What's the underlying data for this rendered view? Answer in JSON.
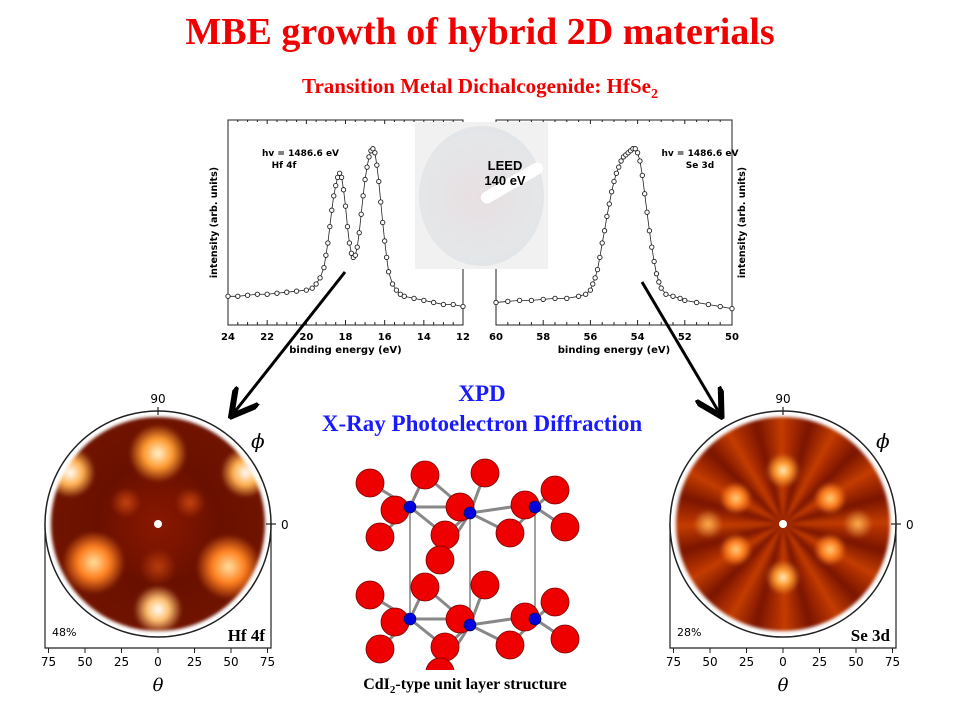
{
  "slide": {
    "title": "MBE growth of hybrid 2D materials",
    "subtitle_main": "Transition Metal Dichalcogenide: HfSe",
    "subtitle_sub": "2",
    "xpd_acronym": "XPD",
    "xpd_full": "X-Ray Photoelectron Diffraction",
    "caption_main_a": "CdI",
    "caption_sub": "2",
    "caption_main_b": "-type  unit layer structure",
    "colors": {
      "title": "#f00000",
      "xpd": "#1a1aff",
      "atom_se": "#ee0000",
      "atom_hf": "#0000dd"
    }
  },
  "leed": {
    "label_line1": "LEED",
    "label_line2": "140 eV"
  },
  "chart_data": [
    {
      "type": "scatter",
      "title": "",
      "annotation_line1": "hv = 1486.6 eV",
      "annotation_line2": "Hf 4f",
      "xlabel": "binding energy (eV)",
      "ylabel": "intensity (arb. units)",
      "xlim": [
        24,
        12
      ],
      "ylim": [
        0,
        1
      ],
      "xticks": [
        "24",
        "22",
        "20",
        "18",
        "16",
        "14",
        "12"
      ],
      "x": [
        24,
        23.5,
        23,
        22.5,
        22,
        21.5,
        21,
        20.5,
        20,
        19.7,
        19.5,
        19.3,
        19.1,
        19.0,
        18.9,
        18.8,
        18.7,
        18.6,
        18.5,
        18.4,
        18.3,
        18.2,
        18.1,
        18.0,
        17.9,
        17.8,
        17.7,
        17.6,
        17.5,
        17.4,
        17.3,
        17.2,
        17.1,
        17.0,
        16.9,
        16.8,
        16.7,
        16.6,
        16.5,
        16.4,
        16.3,
        16.2,
        16.1,
        16.0,
        15.9,
        15.8,
        15.6,
        15.4,
        15.2,
        15,
        14.5,
        14,
        13.5,
        13,
        12.5,
        12
      ],
      "y": [
        0.14,
        0.14,
        0.145,
        0.15,
        0.15,
        0.155,
        0.16,
        0.165,
        0.17,
        0.18,
        0.2,
        0.23,
        0.28,
        0.34,
        0.4,
        0.48,
        0.56,
        0.63,
        0.68,
        0.72,
        0.74,
        0.72,
        0.66,
        0.58,
        0.48,
        0.4,
        0.35,
        0.33,
        0.34,
        0.38,
        0.45,
        0.54,
        0.63,
        0.71,
        0.77,
        0.82,
        0.85,
        0.86,
        0.84,
        0.78,
        0.7,
        0.6,
        0.5,
        0.41,
        0.33,
        0.26,
        0.2,
        0.17,
        0.15,
        0.14,
        0.13,
        0.12,
        0.11,
        0.1,
        0.1,
        0.09
      ]
    },
    {
      "type": "scatter",
      "title": "",
      "annotation_line1": "hv = 1486.6 eV",
      "annotation_line2": "Se 3d",
      "xlabel": "binding energy (eV)",
      "ylabel": "intensity (arb. units)",
      "xlim": [
        60,
        50
      ],
      "ylim": [
        0,
        1
      ],
      "xticks": [
        "60",
        "58",
        "56",
        "54",
        "52",
        "50"
      ],
      "x": [
        60,
        59.5,
        59,
        58.5,
        58,
        57.5,
        57,
        56.5,
        56.2,
        56,
        55.9,
        55.8,
        55.7,
        55.6,
        55.5,
        55.4,
        55.3,
        55.2,
        55.1,
        55,
        54.9,
        54.8,
        54.7,
        54.6,
        54.5,
        54.4,
        54.3,
        54.2,
        54.1,
        54,
        53.9,
        53.8,
        53.7,
        53.6,
        53.5,
        53.4,
        53.3,
        53.2,
        53.1,
        53,
        52.8,
        52.5,
        52.2,
        52,
        51.5,
        51,
        50.5,
        50
      ],
      "y": [
        0.11,
        0.115,
        0.12,
        0.12,
        0.125,
        0.13,
        0.13,
        0.14,
        0.15,
        0.17,
        0.2,
        0.23,
        0.27,
        0.33,
        0.4,
        0.46,
        0.53,
        0.59,
        0.65,
        0.7,
        0.74,
        0.77,
        0.8,
        0.82,
        0.83,
        0.84,
        0.85,
        0.86,
        0.86,
        0.84,
        0.8,
        0.73,
        0.64,
        0.55,
        0.46,
        0.38,
        0.31,
        0.25,
        0.21,
        0.18,
        0.15,
        0.14,
        0.13,
        0.12,
        0.11,
        0.1,
        0.09,
        0.08
      ]
    }
  ],
  "polar_plots": [
    {
      "label": "Hf 4f",
      "anisotropy": "48%",
      "phi_label": "ϕ",
      "theta_label": "θ",
      "phi_ticks": [
        "90",
        "0"
      ],
      "theta_ticks": [
        "75",
        "50",
        "25",
        "0",
        "25",
        "50",
        "75"
      ]
    },
    {
      "label": "Se 3d",
      "anisotropy": "28%",
      "phi_label": "ϕ",
      "theta_label": "θ",
      "phi_ticks": [
        "90",
        "0"
      ],
      "theta_ticks": [
        "75",
        "50",
        "25",
        "0",
        "25",
        "50",
        "75"
      ]
    }
  ]
}
